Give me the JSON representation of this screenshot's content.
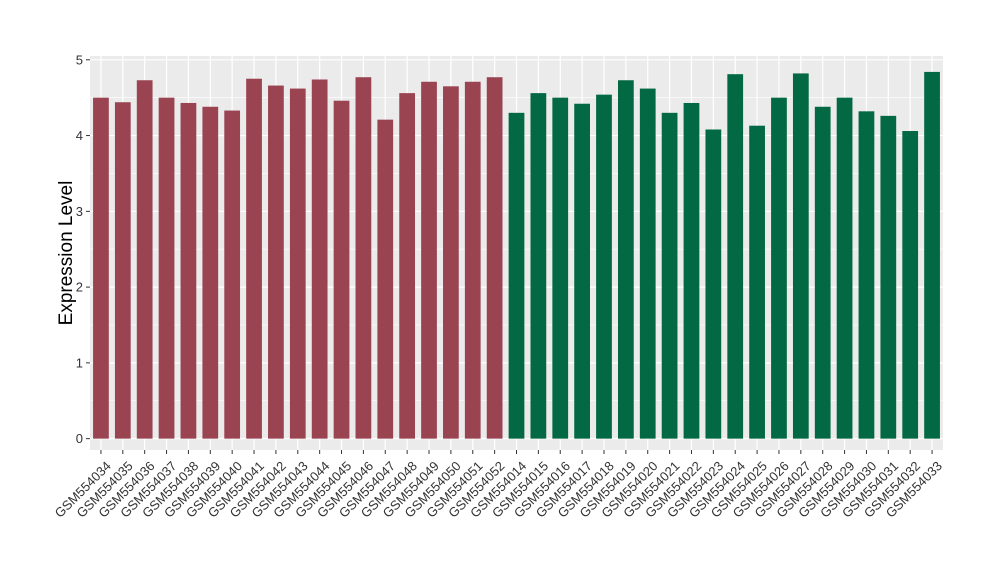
{
  "chart_data": {
    "type": "bar",
    "title": "",
    "xlabel": "",
    "ylabel": "Expression Level",
    "ylim": [
      -0.15,
      5.05
    ],
    "yticks": [
      0,
      1,
      2,
      3,
      4,
      5
    ],
    "grid": true,
    "legend": "none",
    "colors": {
      "group_a": "#9a4452",
      "group_b": "#036844",
      "panel": "#ebebeb",
      "gridline": "#ffffff"
    },
    "categories": [
      "GSM554034",
      "GSM554035",
      "GSM554036",
      "GSM554037",
      "GSM554038",
      "GSM554039",
      "GSM554040",
      "GSM554041",
      "GSM554042",
      "GSM554043",
      "GSM554044",
      "GSM554045",
      "GSM554046",
      "GSM554047",
      "GSM554048",
      "GSM554049",
      "GSM554050",
      "GSM554051",
      "GSM554052",
      "GSM554014",
      "GSM554015",
      "GSM554016",
      "GSM554017",
      "GSM554018",
      "GSM554019",
      "GSM554020",
      "GSM554021",
      "GSM554022",
      "GSM554023",
      "GSM554024",
      "GSM554025",
      "GSM554026",
      "GSM554027",
      "GSM554028",
      "GSM554029",
      "GSM554030",
      "GSM554031",
      "GSM554032",
      "GSM554033"
    ],
    "values": [
      4.5,
      4.44,
      4.73,
      4.5,
      4.43,
      4.38,
      4.33,
      4.75,
      4.66,
      4.62,
      4.74,
      4.46,
      4.77,
      4.21,
      4.56,
      4.71,
      4.65,
      4.71,
      4.77,
      4.3,
      4.56,
      4.5,
      4.42,
      4.54,
      4.73,
      4.62,
      4.3,
      4.43,
      4.08,
      4.81,
      4.13,
      4.5,
      4.82,
      4.38,
      4.5,
      4.32,
      4.26,
      4.06,
      4.84
    ],
    "groups": [
      "a",
      "a",
      "a",
      "a",
      "a",
      "a",
      "a",
      "a",
      "a",
      "a",
      "a",
      "a",
      "a",
      "a",
      "a",
      "a",
      "a",
      "a",
      "a",
      "b",
      "b",
      "b",
      "b",
      "b",
      "b",
      "b",
      "b",
      "b",
      "b",
      "b",
      "b",
      "b",
      "b",
      "b",
      "b",
      "b",
      "b",
      "b",
      "b"
    ]
  }
}
